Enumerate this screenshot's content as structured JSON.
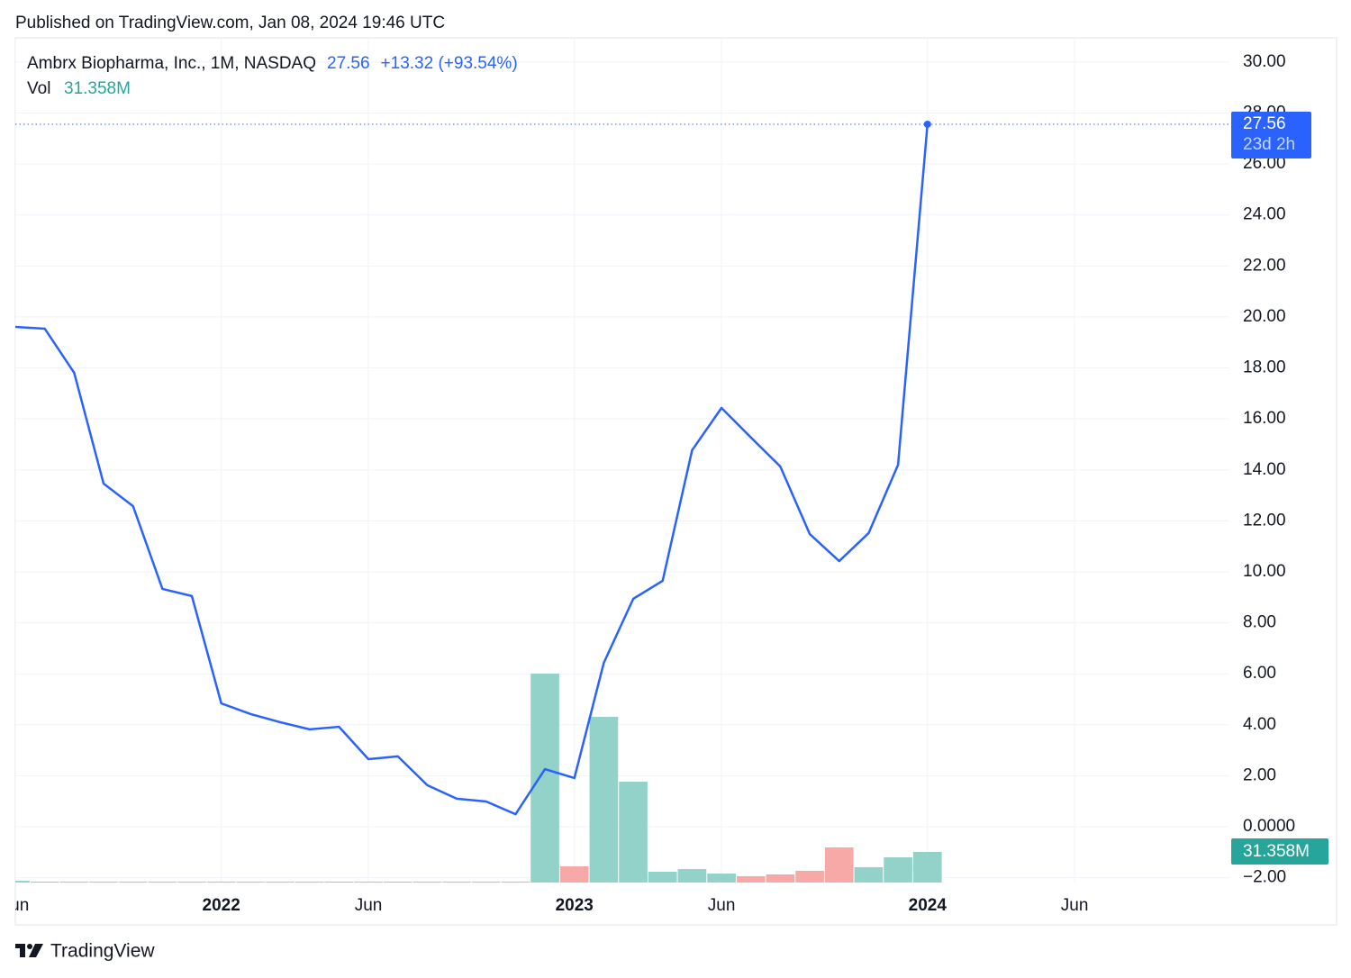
{
  "header": {
    "published": "Published on TradingView.com, Jan 08, 2024 19:46 UTC"
  },
  "chart_data": {
    "type": "line",
    "title": "Ambrx Biopharma, Inc., 1M, NASDAQ",
    "change": "+13.32 (+93.54%)",
    "countdown": "23d 2h",
    "x": [
      "2021-06",
      "2021-07",
      "2021-08",
      "2021-09",
      "2021-10",
      "2021-11",
      "2021-12",
      "2022-01",
      "2022-02",
      "2022-03",
      "2022-04",
      "2022-05",
      "2022-06",
      "2022-07",
      "2022-08",
      "2022-09",
      "2022-10",
      "2022-11",
      "2022-12",
      "2023-01",
      "2023-02",
      "2023-03",
      "2023-04",
      "2023-05",
      "2023-06",
      "2023-07",
      "2023-08",
      "2023-09",
      "2023-10",
      "2023-11",
      "2023-12",
      "2024-01"
    ],
    "series": [
      {
        "type": "line",
        "color": "#2962ff",
        "values": [
          19.61,
          19.54,
          17.81,
          13.46,
          12.58,
          9.33,
          9.05,
          4.84,
          4.42,
          4.1,
          3.82,
          3.92,
          2.65,
          2.76,
          1.63,
          1.1,
          0.99,
          0.49,
          2.26,
          1.91,
          6.43,
          8.94,
          9.65,
          14.77,
          16.43,
          15.27,
          14.13,
          11.48,
          10.42,
          11.52,
          14.2,
          27.56
        ]
      },
      {
        "type": "bar",
        "name": "Vol",
        "axis": "y2",
        "values": [
          1.8,
          1.0,
          1.0,
          1.0,
          1.0,
          1.0,
          1.0,
          1.0,
          1.0,
          1.0,
          1.0,
          1.0,
          1.0,
          1.0,
          1.0,
          1.0,
          1.0,
          1.0,
          214.0,
          16.6,
          169.7,
          103.3,
          11.1,
          13.8,
          9.2,
          6.5,
          8.3,
          12.0,
          36.0,
          15.7,
          25.8,
          31.358
        ],
        "value_labels": [
          null,
          null,
          null,
          null,
          null,
          null,
          null,
          null,
          null,
          null,
          null,
          null,
          null,
          null,
          null,
          null,
          null,
          null,
          null,
          null,
          null,
          null,
          null,
          null,
          null,
          null,
          null,
          null,
          null,
          null,
          null,
          "31.358M"
        ],
        "colors": [
          "#92d2c9",
          "#92d2c9",
          "#f6a9a7",
          "#f6a9a7",
          "#f6a9a7",
          "#f6a9a7",
          "#f6a9a7",
          "#f6a9a7",
          "#f6a9a7",
          "#f6a9a7",
          "#f6a9a7",
          "#92d2c9",
          "#f6a9a7",
          "#92d2c9",
          "#f6a9a7",
          "#f6a9a7",
          "#f6a9a7",
          "#f6a9a7",
          "#92d2c9",
          "#f6a9a7",
          "#92d2c9",
          "#92d2c9",
          "#92d2c9",
          "#92d2c9",
          "#92d2c9",
          "#f6a9a7",
          "#f6a9a7",
          "#f6a9a7",
          "#f6a9a7",
          "#92d2c9",
          "#92d2c9",
          "#92d2c9"
        ]
      }
    ],
    "xlim": [
      "2021-06",
      "2024-11"
    ],
    "xticks": [
      {
        "value": "2021-06",
        "label": "Jun"
      },
      {
        "value": "2022-01",
        "label": "2022"
      },
      {
        "value": "2022-06",
        "label": "Jun"
      },
      {
        "value": "2023-01",
        "label": "2023"
      },
      {
        "value": "2023-06",
        "label": "Jun"
      },
      {
        "value": "2024-01",
        "label": "2024"
      },
      {
        "value": "2024-06",
        "label": "Jun"
      }
    ],
    "ylim": [
      -2.19,
      30.95
    ],
    "yticks": [
      {
        "value": 30,
        "label": "30.00"
      },
      {
        "value": 28,
        "label": "28.00"
      },
      {
        "value": 26,
        "label": "26.00"
      },
      {
        "value": 24,
        "label": "24.00"
      },
      {
        "value": 22,
        "label": "22.00"
      },
      {
        "value": 20,
        "label": "20.00"
      },
      {
        "value": 18,
        "label": "18.00"
      },
      {
        "value": 16,
        "label": "16.00"
      },
      {
        "value": 14,
        "label": "14.00"
      },
      {
        "value": 12,
        "label": "12.00"
      },
      {
        "value": 10,
        "label": "10.00"
      },
      {
        "value": 8,
        "label": "8.00"
      },
      {
        "value": 6,
        "label": "6.00"
      },
      {
        "value": 4,
        "label": "4.00"
      },
      {
        "value": 2,
        "label": "2.00"
      },
      {
        "value": 0,
        "label": "0.0000"
      },
      {
        "value": -2,
        "label": "−2.00"
      }
    ],
    "y2lim": [
      0,
      865
    ],
    "grid": true
  },
  "footer": {
    "brand": "TradingView"
  }
}
